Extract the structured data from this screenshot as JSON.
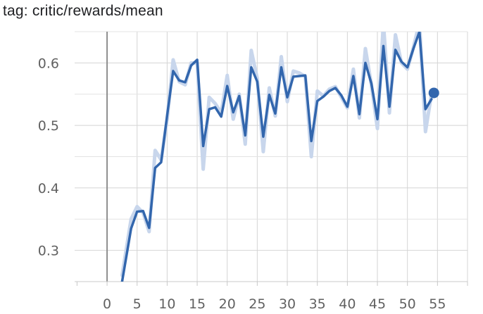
{
  "chart_data": {
    "type": "line",
    "title": "tag: critic/rewards/mean",
    "xlabel": "",
    "ylabel": "",
    "xlim": [
      -5.4,
      60
    ],
    "ylim": [
      0.25,
      0.65
    ],
    "x_ticks": [
      0,
      5,
      10,
      15,
      20,
      25,
      30,
      35,
      40,
      45,
      50,
      55
    ],
    "y_ticks": [
      0.3,
      0.4,
      0.5,
      0.6
    ],
    "grid": true,
    "legend": "none",
    "series": [
      {
        "style": "smoothed",
        "color": "#3266ad",
        "x": [
          2.5,
          4,
          5,
          6,
          7,
          8,
          9,
          10,
          11,
          12,
          13,
          14,
          15,
          16,
          17,
          18,
          19,
          20,
          21,
          22,
          23,
          24,
          25,
          26,
          27,
          28,
          29,
          30,
          31,
          32,
          33,
          34,
          35,
          36,
          37,
          38,
          39,
          40,
          41,
          42,
          43,
          44,
          45,
          46,
          47,
          48,
          49,
          50,
          51,
          52,
          53,
          54
        ],
        "y": [
          0.25,
          0.335,
          0.362,
          0.363,
          0.336,
          0.432,
          0.441,
          0.516,
          0.587,
          0.572,
          0.569,
          0.596,
          0.605,
          0.467,
          0.526,
          0.529,
          0.514,
          0.563,
          0.521,
          0.547,
          0.484,
          0.593,
          0.57,
          0.482,
          0.549,
          0.519,
          0.593,
          0.545,
          0.578,
          0.579,
          0.58,
          0.475,
          0.539,
          0.546,
          0.555,
          0.56,
          0.548,
          0.53,
          0.579,
          0.518,
          0.6,
          0.567,
          0.51,
          0.627,
          0.53,
          0.621,
          0.602,
          0.593,
          0.623,
          0.65,
          0.526,
          0.542
        ]
      },
      {
        "style": "raw",
        "color": "#c8d6ec",
        "x": [
          2.5,
          4,
          5,
          6,
          7,
          8,
          9,
          10,
          11,
          12,
          13,
          14,
          15,
          16,
          17,
          18,
          19,
          20,
          21,
          22,
          23,
          24,
          25,
          26,
          27,
          28,
          29,
          30,
          31,
          32,
          33,
          34,
          35,
          36,
          37,
          38,
          39,
          40,
          41,
          42,
          43,
          44,
          45,
          46,
          47,
          48,
          49,
          50,
          51,
          52,
          53,
          54
        ],
        "y": [
          0.26,
          0.35,
          0.37,
          0.36,
          0.33,
          0.46,
          0.445,
          0.51,
          0.605,
          0.57,
          0.565,
          0.6,
          0.6,
          0.43,
          0.545,
          0.535,
          0.52,
          0.58,
          0.51,
          0.55,
          0.47,
          0.62,
          0.575,
          0.458,
          0.56,
          0.515,
          0.61,
          0.538,
          0.587,
          0.584,
          0.578,
          0.45,
          0.555,
          0.547,
          0.558,
          0.562,
          0.545,
          0.528,
          0.59,
          0.512,
          0.623,
          0.565,
          0.495,
          0.665,
          0.52,
          0.645,
          0.6,
          0.59,
          0.625,
          0.665,
          0.49,
          0.55
        ]
      }
    ],
    "marker": {
      "x": 54.4,
      "y": 0.552
    }
  }
}
